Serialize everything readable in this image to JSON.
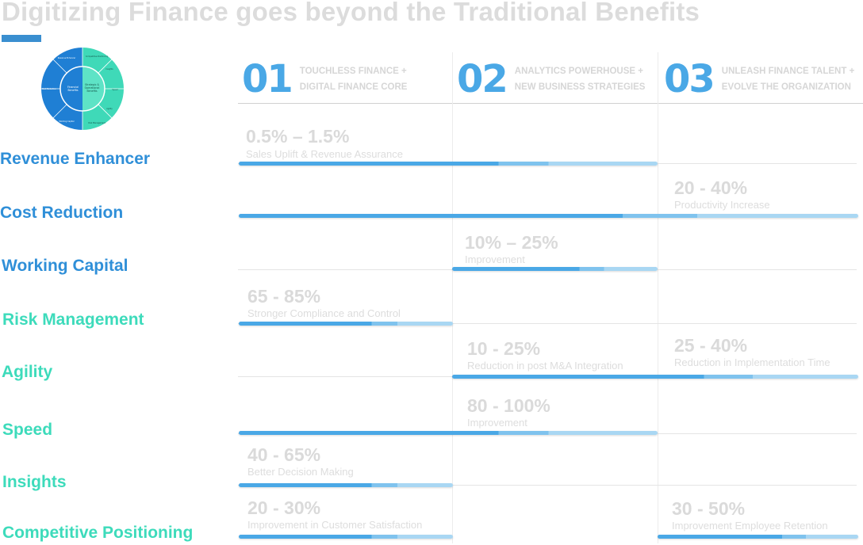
{
  "title": "Digitizing Finance goes beyond the Traditional Benefits",
  "donut": {
    "center": [
      "Financial",
      "Benefits"
    ],
    "inner_right": [
      "Strategic &",
      "Operational",
      "Benefits"
    ],
    "segments": [
      "Revenue Enhancer",
      "Cost Reduction",
      "Working Capital",
      "Competitive Positioning",
      "Insights",
      "Speed",
      "Agility",
      "Risk Management"
    ],
    "colors": {
      "blue": "#1f7fd4",
      "teal": "#3fd9b8"
    }
  },
  "phases": [
    {
      "num": "01",
      "line1": "TOUCHLESS FINANCE +",
      "line2": "DIGITAL FINANCE CORE"
    },
    {
      "num": "02",
      "line1": "ANALYTICS POWERHOUSE +",
      "line2": "NEW BUSINESS STRATEGIES"
    },
    {
      "num": "03",
      "line1": "UNLEASH FINANCE TALENT +",
      "line2": "EVOLVE THE ORGANIZATION"
    }
  ],
  "rows": [
    {
      "label": "Revenue Enhancer",
      "color": "#2f8fd8"
    },
    {
      "label": "Cost Reduction",
      "color": "#2f8fd8"
    },
    {
      "label": "Working Capital",
      "color": "#2f8fd8"
    },
    {
      "label": "Risk Management",
      "color": "#3ddbbb"
    },
    {
      "label": "Agility",
      "color": "#3ddbbb"
    },
    {
      "label": "Speed",
      "color": "#3ddbbb"
    },
    {
      "label": "Insights",
      "color": "#3ddbbb"
    },
    {
      "label": "Competitive Positioning",
      "color": "#3ddbbb"
    }
  ],
  "metrics": [
    {
      "value": "0.5% – 1.5%",
      "desc": "Sales Uplift & Revenue Assurance"
    },
    {
      "value": "20 - 40%",
      "desc": "Productivity Increase"
    },
    {
      "value": "10% – 25%",
      "desc": "Improvement"
    },
    {
      "value": "65 - 85%",
      "desc": "Stronger Compliance and Control"
    },
    {
      "value": "10 - 25%",
      "desc": "Reduction in post M&A Integration"
    },
    {
      "value": "25 - 40%",
      "desc": "Reduction in Implementation Time"
    },
    {
      "value": "80 - 100%",
      "desc": "Improvement"
    },
    {
      "value": "40 - 65%",
      "desc": "Better Decision Making"
    },
    {
      "value": "20 - 30%",
      "desc": "Improvement in Customer Satisfaction"
    },
    {
      "value": "30 - 50%",
      "desc": "Improvement Employee Retention"
    }
  ]
}
